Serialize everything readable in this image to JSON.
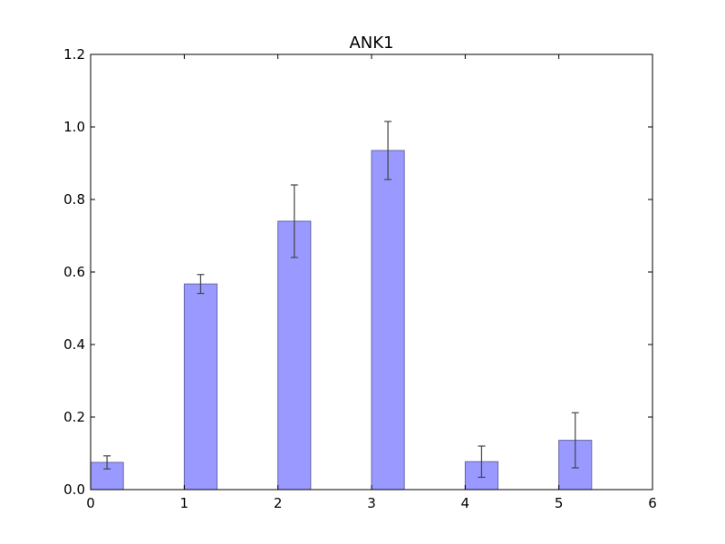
{
  "chart_data": {
    "type": "bar",
    "title": "ANK1",
    "xlabel": "",
    "ylabel": "",
    "xlim": [
      0,
      6
    ],
    "ylim": [
      0,
      1.2
    ],
    "x": [
      0,
      1,
      2,
      3,
      4,
      5
    ],
    "bar_width": 0.35,
    "values": [
      0.075,
      0.567,
      0.74,
      0.935,
      0.077,
      0.136
    ],
    "errors": [
      0.018,
      0.026,
      0.1,
      0.08,
      0.043,
      0.076
    ],
    "xticks": [
      "0",
      "1",
      "2",
      "3",
      "4",
      "5",
      "6"
    ],
    "yticks": [
      "0.0",
      "0.2",
      "0.4",
      "0.6",
      "0.8",
      "1.0",
      "1.2"
    ],
    "bar_color": "#9999ff",
    "bar_edge_color": "#6666aa",
    "error_color": "#444444",
    "grid": false
  }
}
